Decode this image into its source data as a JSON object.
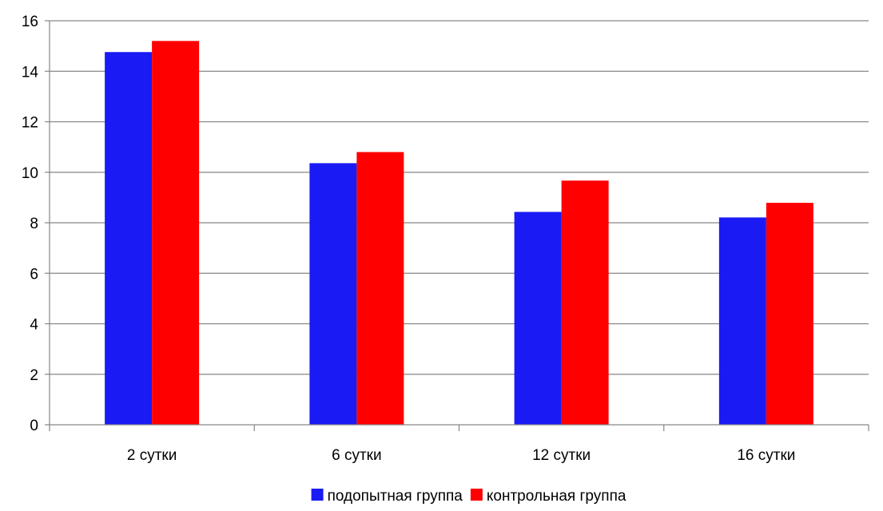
{
  "chart_data": {
    "type": "bar",
    "title": "",
    "xlabel": "",
    "ylabel": "",
    "categories": [
      "2 сутки",
      "6 сутки",
      "12 сутки",
      "16 сутки"
    ],
    "series": [
      {
        "name": "подопытная группа",
        "color": "#1a1af5",
        "values": [
          14.76,
          10.36,
          8.43,
          8.21
        ]
      },
      {
        "name": "контрольная группа",
        "color": "#ff0000",
        "values": [
          15.2,
          10.8,
          9.67,
          8.79
        ]
      }
    ],
    "ylim": [
      0,
      16
    ],
    "yticks": [
      0,
      2,
      4,
      6,
      8,
      10,
      12,
      14,
      16
    ],
    "grid": true,
    "legend": "bottom"
  }
}
